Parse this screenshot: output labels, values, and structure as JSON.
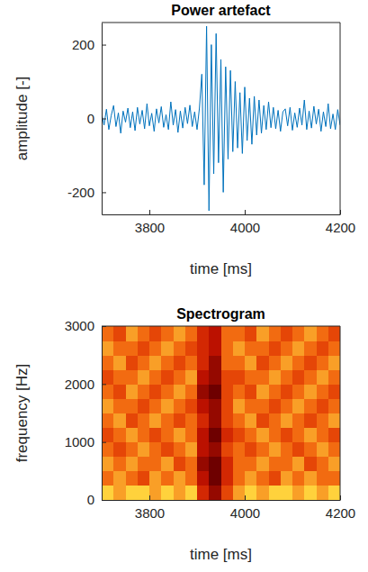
{
  "chart_data": [
    {
      "type": "line",
      "title": "Power artefact",
      "x_label": "time [ms]",
      "y_label": "amplitude [-]",
      "x": [
        3700,
        3705,
        3710,
        3715,
        3720,
        3725,
        3730,
        3735,
        3740,
        3745,
        3750,
        3755,
        3760,
        3765,
        3770,
        3775,
        3780,
        3785,
        3790,
        3795,
        3800,
        3805,
        3810,
        3815,
        3820,
        3825,
        3830,
        3835,
        3840,
        3845,
        3850,
        3855,
        3860,
        3865,
        3870,
        3875,
        3880,
        3885,
        3890,
        3895,
        3900,
        3905,
        3910,
        3915,
        3920,
        3925,
        3930,
        3935,
        3940,
        3945,
        3950,
        3955,
        3960,
        3965,
        3970,
        3975,
        3980,
        3985,
        3990,
        3995,
        4000,
        4005,
        4010,
        4015,
        4020,
        4025,
        4030,
        4035,
        4040,
        4045,
        4050,
        4055,
        4060,
        4065,
        4070,
        4075,
        4080,
        4085,
        4090,
        4095,
        4100,
        4105,
        4110,
        4115,
        4120,
        4125,
        4130,
        4135,
        4140,
        4145,
        4150,
        4155,
        4160,
        4165,
        4170,
        4175,
        4180,
        4185,
        4190,
        4195,
        4200
      ],
      "series": [
        {
          "color": "#0072bd",
          "values": [
            12,
            -18,
            25,
            -30,
            8,
            35,
            -22,
            15,
            -40,
            20,
            -10,
            28,
            -25,
            18,
            -33,
            30,
            -15,
            22,
            -28,
            40,
            -20,
            14,
            -35,
            26,
            -12,
            32,
            -24,
            10,
            -30,
            45,
            -18,
            24,
            -38,
            20,
            -26,
            30,
            -14,
            36,
            -22,
            18,
            -30,
            28,
            120,
            -180,
            250,
            -250,
            200,
            -150,
            230,
            -120,
            160,
            -200,
            140,
            -110,
            130,
            -90,
            100,
            -80,
            70,
            -95,
            85,
            -60,
            55,
            -70,
            60,
            -45,
            50,
            -40,
            35,
            -30,
            45,
            -25,
            30,
            -28,
            22,
            -35,
            18,
            26,
            -20,
            30,
            -32,
            15,
            -24,
            28,
            -18,
            50,
            -30,
            20,
            -26,
            33,
            -15,
            25,
            -35,
            18,
            -22,
            40,
            -28,
            12,
            -30,
            24,
            -18
          ]
        }
      ],
      "xlim": [
        3700,
        4200
      ],
      "xticks": [
        3800,
        4000,
        4200
      ],
      "ylim": [
        -260,
        260
      ],
      "yticks": [
        -200,
        0,
        200
      ]
    },
    {
      "type": "heatmap",
      "title": "Spectrogram",
      "x_label": "time [ms]",
      "y_label": "frequency [Hz]",
      "x": [
        3700,
        3725,
        3750,
        3775,
        3800,
        3825,
        3850,
        3875,
        3900,
        3925,
        3950,
        3975,
        4000,
        4025,
        4050,
        4075,
        4100,
        4125,
        4150,
        4175,
        4200
      ],
      "y": [
        0,
        250,
        500,
        750,
        1000,
        1250,
        1500,
        1750,
        2000,
        2250,
        2500,
        2750,
        3000
      ],
      "values": [
        [
          8,
          7,
          8,
          8,
          7,
          8,
          7,
          8,
          4,
          2,
          5,
          7,
          8,
          7,
          8,
          8,
          7,
          8,
          7,
          8
        ],
        [
          6,
          7,
          6,
          5,
          7,
          6,
          7,
          6,
          3,
          1,
          4,
          6,
          7,
          6,
          5,
          7,
          6,
          7,
          6,
          6
        ],
        [
          7,
          6,
          7,
          6,
          6,
          7,
          5,
          6,
          2,
          1,
          4,
          6,
          6,
          7,
          6,
          6,
          7,
          5,
          6,
          7
        ],
        [
          6,
          5,
          6,
          7,
          6,
          5,
          6,
          7,
          3,
          2,
          5,
          6,
          5,
          6,
          7,
          6,
          5,
          6,
          7,
          6
        ],
        [
          5,
          6,
          7,
          6,
          5,
          6,
          7,
          6,
          3,
          1,
          4,
          5,
          6,
          7,
          6,
          5,
          6,
          7,
          6,
          5
        ],
        [
          6,
          7,
          5,
          6,
          7,
          6,
          5,
          6,
          4,
          2,
          5,
          6,
          7,
          5,
          6,
          7,
          6,
          5,
          6,
          7
        ],
        [
          7,
          6,
          6,
          5,
          6,
          7,
          6,
          5,
          3,
          2,
          5,
          7,
          6,
          6,
          5,
          6,
          7,
          6,
          5,
          6
        ],
        [
          6,
          5,
          7,
          6,
          5,
          6,
          7,
          6,
          2,
          1,
          5,
          6,
          5,
          7,
          6,
          5,
          6,
          7,
          6,
          5
        ],
        [
          5,
          6,
          6,
          7,
          6,
          5,
          6,
          7,
          3,
          2,
          5,
          5,
          6,
          6,
          7,
          6,
          5,
          6,
          7,
          6
        ],
        [
          6,
          7,
          5,
          6,
          7,
          6,
          5,
          6,
          4,
          2,
          6,
          6,
          7,
          5,
          6,
          7,
          6,
          5,
          6,
          7
        ],
        [
          7,
          6,
          6,
          5,
          6,
          7,
          6,
          5,
          4,
          3,
          6,
          7,
          6,
          6,
          5,
          6,
          7,
          6,
          5,
          6
        ],
        [
          6,
          5,
          7,
          6,
          5,
          6,
          7,
          6,
          4,
          3,
          6,
          6,
          5,
          7,
          6,
          5,
          6,
          7,
          6,
          5
        ]
      ],
      "xlim": [
        3700,
        4200
      ],
      "xticks": [
        3800,
        4000,
        4200
      ],
      "ylim": [
        0,
        3000
      ],
      "yticks": [
        0,
        1000,
        2000,
        3000
      ]
    }
  ]
}
